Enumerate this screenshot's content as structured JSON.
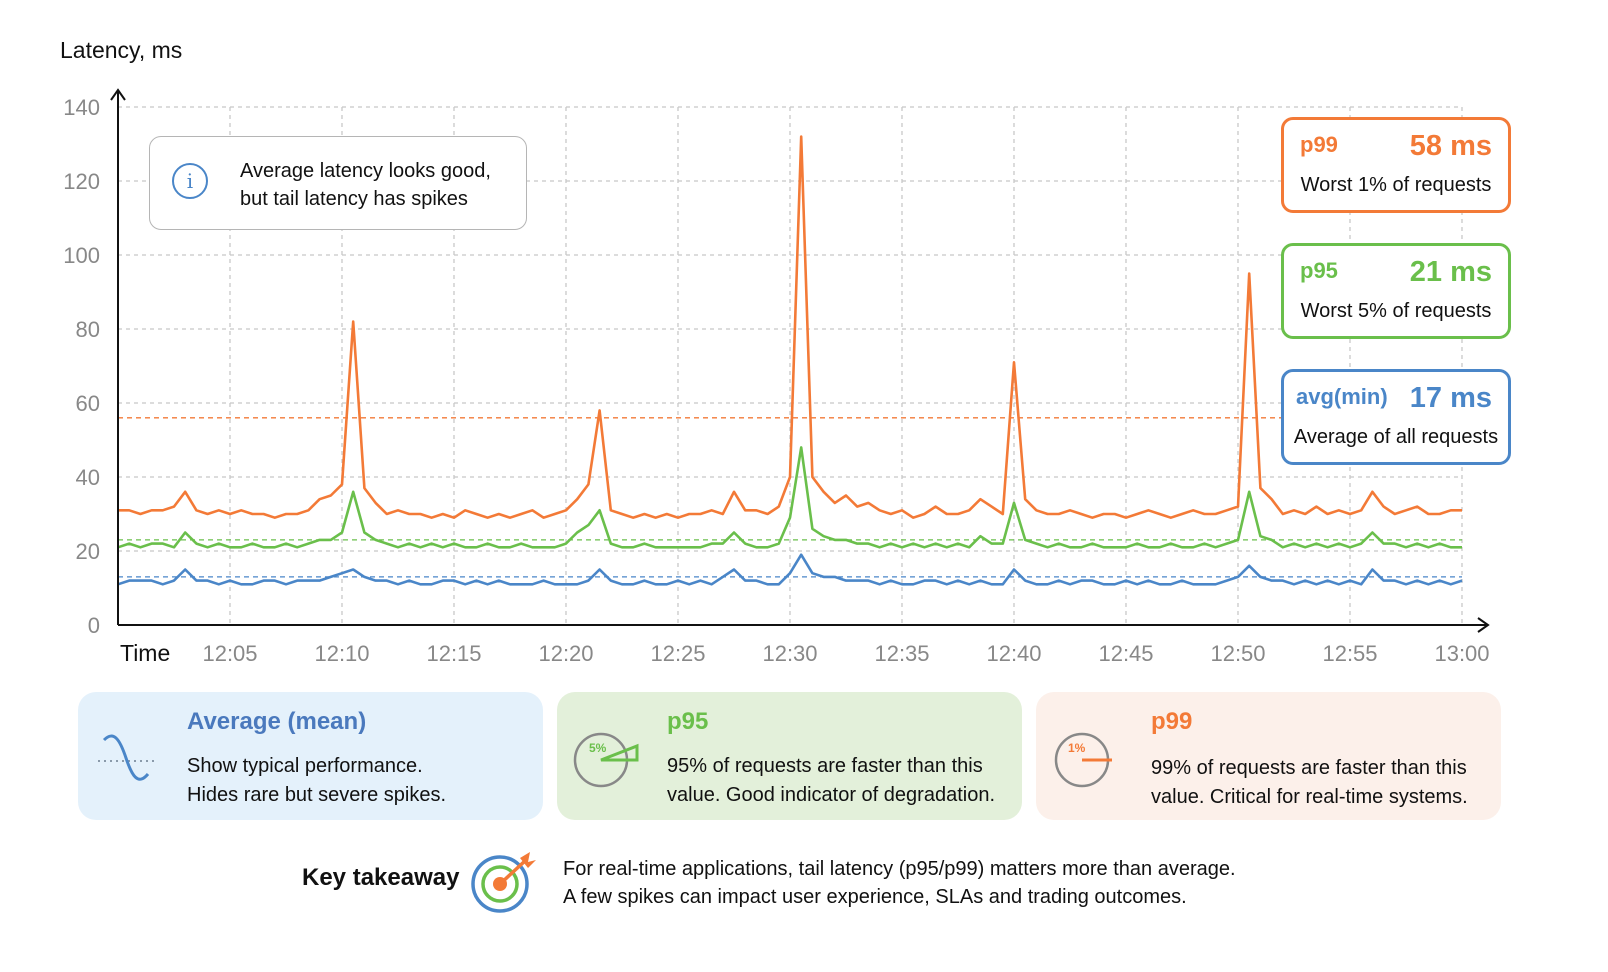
{
  "colors": {
    "p99": "#f37a37",
    "p95": "#6abf4b",
    "avg": "#4a86c8",
    "grid": "#c8c8c8"
  },
  "chart_data": {
    "type": "line",
    "ylabel": "Latency, ms",
    "xlabel": "Time",
    "ylim": [
      0,
      140
    ],
    "yticks": [
      0,
      20,
      40,
      60,
      80,
      100,
      120,
      140
    ],
    "xticks": [
      "12:05",
      "12:10",
      "12:15",
      "12:20",
      "12:25",
      "12:30",
      "12:35",
      "12:40",
      "12:45",
      "12:50",
      "12:55",
      "13:00"
    ],
    "grid": true,
    "x": [
      "12:00:00",
      "12:00:30",
      "12:01:00",
      "12:01:30",
      "12:02:00",
      "12:02:30",
      "12:03:00",
      "12:03:30",
      "12:04:00",
      "12:04:30",
      "12:05:00",
      "12:05:30",
      "12:06:00",
      "12:06:30",
      "12:07:00",
      "12:07:30",
      "12:08:00",
      "12:08:30",
      "12:09:00",
      "12:09:30",
      "12:10:00",
      "12:10:30",
      "12:11:00",
      "12:11:30",
      "12:12:00",
      "12:12:30",
      "12:13:00",
      "12:13:30",
      "12:14:00",
      "12:14:30",
      "12:15:00",
      "12:15:30",
      "12:16:00",
      "12:16:30",
      "12:17:00",
      "12:17:30",
      "12:18:00",
      "12:18:30",
      "12:19:00",
      "12:19:30",
      "12:20:00",
      "12:20:30",
      "12:21:00",
      "12:21:30",
      "12:22:00",
      "12:22:30",
      "12:23:00",
      "12:23:30",
      "12:24:00",
      "12:24:30",
      "12:25:00",
      "12:25:30",
      "12:26:00",
      "12:26:30",
      "12:27:00",
      "12:27:30",
      "12:28:00",
      "12:28:30",
      "12:29:00",
      "12:29:30",
      "12:30:00",
      "12:30:30",
      "12:31:00",
      "12:31:30",
      "12:32:00",
      "12:32:30",
      "12:33:00",
      "12:33:30",
      "12:34:00",
      "12:34:30",
      "12:35:00",
      "12:35:30",
      "12:36:00",
      "12:36:30",
      "12:37:00",
      "12:37:30",
      "12:38:00",
      "12:38:30",
      "12:39:00",
      "12:39:30",
      "12:40:00",
      "12:40:30",
      "12:41:00",
      "12:41:30",
      "12:42:00",
      "12:42:30",
      "12:43:00",
      "12:43:30",
      "12:44:00",
      "12:44:30",
      "12:45:00",
      "12:45:30",
      "12:46:00",
      "12:46:30",
      "12:47:00",
      "12:47:30",
      "12:48:00",
      "12:48:30",
      "12:49:00",
      "12:49:30",
      "12:50:00",
      "12:50:30",
      "12:51:00",
      "12:51:30",
      "12:52:00",
      "12:52:30",
      "12:53:00",
      "12:53:30",
      "12:54:00",
      "12:54:30",
      "12:55:00",
      "12:55:30",
      "12:56:00",
      "12:56:30",
      "12:57:00",
      "12:57:30",
      "12:58:00",
      "12:58:30",
      "12:59:00",
      "12:59:30",
      "13:00:00"
    ],
    "series": [
      {
        "key": "p99",
        "values": [
          31,
          31,
          30,
          31,
          31,
          32,
          36,
          31,
          30,
          31,
          30,
          31,
          30,
          30,
          29,
          30,
          30,
          31,
          34,
          35,
          38,
          82,
          37,
          33,
          30,
          31,
          30,
          30,
          29,
          30,
          29,
          31,
          30,
          29,
          30,
          29,
          30,
          31,
          29,
          30,
          31,
          34,
          38,
          58,
          31,
          30,
          29,
          30,
          29,
          30,
          29,
          30,
          30,
          31,
          30,
          36,
          31,
          31,
          30,
          32,
          40,
          132,
          40,
          36,
          33,
          35,
          32,
          33,
          31,
          30,
          31,
          29,
          30,
          32,
          30,
          30,
          31,
          34,
          32,
          30,
          71,
          34,
          31,
          30,
          30,
          31,
          30,
          29,
          30,
          30,
          29,
          30,
          31,
          30,
          29,
          30,
          31,
          30,
          30,
          31,
          32,
          95,
          37,
          34,
          30,
          31,
          30,
          32,
          30,
          31,
          30,
          31,
          36,
          32,
          30,
          31,
          32,
          30,
          30,
          31,
          31
        ],
        "reference": 56
      },
      {
        "key": "p95",
        "values": [
          21,
          22,
          21,
          22,
          22,
          21,
          25,
          22,
          21,
          22,
          21,
          21,
          22,
          21,
          21,
          22,
          21,
          22,
          23,
          23,
          25,
          36,
          25,
          23,
          22,
          21,
          22,
          21,
          22,
          21,
          22,
          21,
          21,
          22,
          21,
          21,
          22,
          21,
          21,
          21,
          22,
          25,
          27,
          31,
          22,
          21,
          21,
          22,
          21,
          21,
          21,
          21,
          21,
          22,
          22,
          25,
          22,
          21,
          21,
          22,
          29,
          48,
          26,
          24,
          23,
          23,
          22,
          22,
          21,
          22,
          21,
          22,
          21,
          22,
          21,
          22,
          21,
          24,
          22,
          22,
          33,
          23,
          22,
          21,
          22,
          21,
          21,
          22,
          21,
          21,
          21,
          22,
          21,
          21,
          22,
          21,
          21,
          22,
          21,
          22,
          23,
          36,
          24,
          23,
          21,
          22,
          21,
          22,
          21,
          22,
          21,
          22,
          25,
          22,
          22,
          21,
          22,
          21,
          22,
          21,
          21
        ],
        "reference": 23
      },
      {
        "key": "avg",
        "values": [
          11,
          12,
          12,
          12,
          11,
          12,
          15,
          12,
          12,
          11,
          12,
          11,
          11,
          12,
          12,
          11,
          12,
          12,
          12,
          13,
          14,
          15,
          13,
          12,
          12,
          11,
          12,
          11,
          11,
          12,
          12,
          11,
          12,
          11,
          12,
          11,
          11,
          11,
          12,
          11,
          11,
          11,
          12,
          15,
          12,
          11,
          11,
          12,
          11,
          11,
          12,
          11,
          12,
          11,
          13,
          15,
          12,
          12,
          11,
          11,
          14,
          19,
          14,
          13,
          13,
          12,
          12,
          12,
          11,
          12,
          11,
          11,
          12,
          12,
          11,
          12,
          11,
          12,
          11,
          11,
          15,
          12,
          11,
          11,
          12,
          11,
          12,
          12,
          11,
          11,
          12,
          11,
          12,
          11,
          11,
          12,
          11,
          11,
          11,
          12,
          13,
          16,
          13,
          12,
          12,
          11,
          12,
          11,
          12,
          11,
          12,
          11,
          15,
          12,
          12,
          11,
          12,
          11,
          12,
          11,
          12
        ],
        "reference": 13
      }
    ]
  },
  "info": {
    "icon": "info-icon",
    "line1": "Average latency looks good,",
    "line2": "but tail latency has spikes"
  },
  "stats": [
    {
      "key": "p99",
      "label": "p99",
      "value": "58 ms",
      "desc": "Worst 1% of requests"
    },
    {
      "key": "p95",
      "label": "p95",
      "value": "21 ms",
      "desc": "Worst 5% of requests"
    },
    {
      "key": "avg",
      "label": "avg(min)",
      "value": "17 ms",
      "desc": "Average of all requests"
    }
  ],
  "cards": [
    {
      "title": "Average (mean)",
      "line1": "Show typical performance.",
      "line2": "Hides rare but severe spikes.",
      "icon": "sine-wave-icon",
      "bg": "#e4f1fb"
    },
    {
      "title": "p95",
      "line1": "95% of requests are faster than this",
      "line2": "value. Good indicator of degradation.",
      "icon": "gauge-5-percent-icon",
      "badge": "5%",
      "bg": "#e3f0da"
    },
    {
      "title": "p99",
      "line1": "99% of requests are faster than this",
      "line2": "value. Critical for real-time systems.",
      "icon": "gauge-1-percent-icon",
      "badge": "1%",
      "bg": "#fcf0ea"
    }
  ],
  "takeaway": {
    "label": "Key takeaway",
    "icon": "target-icon",
    "line1": "For real-time applications, tail latency (p95/p99) matters more than average.",
    "line2": "A few spikes can impact user experience, SLAs and trading outcomes."
  }
}
